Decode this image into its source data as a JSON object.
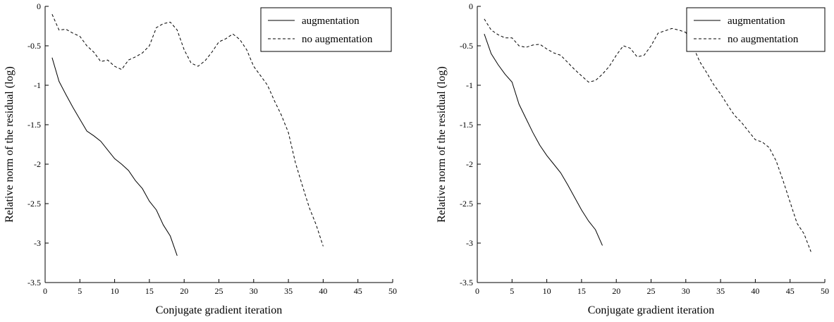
{
  "chart_data": [
    {
      "type": "line",
      "title": "",
      "xlabel": "Conjugate gradient iteration",
      "ylabel": "Relative norm of the residual (log)",
      "xlim": [
        0,
        50
      ],
      "ylim": [
        -3.5,
        0
      ],
      "xticks": [
        "0",
        "5",
        "10",
        "15",
        "20",
        "25",
        "30",
        "35",
        "40",
        "45",
        "50"
      ],
      "yticks": [
        "0",
        "-0.5",
        "-1",
        "-1.5",
        "-2",
        "-2.5",
        "-3",
        "-3.5"
      ],
      "grid": false,
      "legend_position": "top-right",
      "series": [
        {
          "name": "augmentation",
          "style": "solid",
          "x": [
            1,
            2,
            3,
            4,
            5,
            6,
            7,
            8,
            9,
            10,
            11,
            12,
            13,
            14,
            15,
            16,
            17,
            18,
            19
          ],
          "y": [
            -0.65,
            -0.95,
            -1.12,
            -1.28,
            -1.43,
            -1.58,
            -1.64,
            -1.71,
            -1.82,
            -1.93,
            -2.0,
            -2.08,
            -2.21,
            -2.31,
            -2.47,
            -2.58,
            -2.77,
            -2.91,
            -3.16
          ]
        },
        {
          "name": "no augmentation",
          "style": "dashed",
          "x": [
            1,
            2,
            3,
            4,
            5,
            6,
            7,
            8,
            9,
            10,
            11,
            12,
            13,
            14,
            15,
            16,
            17,
            18,
            19,
            20,
            21,
            22,
            23,
            24,
            25,
            26,
            27,
            28,
            29,
            30,
            31,
            32,
            33,
            34,
            35,
            36,
            37,
            38,
            39,
            40
          ],
          "y": [
            -0.1,
            -0.3,
            -0.29,
            -0.34,
            -0.38,
            -0.5,
            -0.58,
            -0.7,
            -0.68,
            -0.76,
            -0.8,
            -0.68,
            -0.64,
            -0.59,
            -0.5,
            -0.27,
            -0.22,
            -0.2,
            -0.3,
            -0.55,
            -0.72,
            -0.76,
            -0.69,
            -0.58,
            -0.45,
            -0.41,
            -0.35,
            -0.42,
            -0.55,
            -0.76,
            -0.88,
            -1.0,
            -1.2,
            -1.38,
            -1.6,
            -1.98,
            -2.27,
            -2.55,
            -2.77,
            -3.04
          ]
        }
      ]
    },
    {
      "type": "line",
      "title": "",
      "xlabel": "Conjugate gradient iteration",
      "ylabel": "Relative norm of the residual (log)",
      "xlim": [
        0,
        50
      ],
      "ylim": [
        -3.5,
        0
      ],
      "xticks": [
        "0",
        "5",
        "10",
        "15",
        "20",
        "25",
        "30",
        "35",
        "40",
        "45",
        "50"
      ],
      "yticks": [
        "0",
        "-0.5",
        "-1",
        "-1.5",
        "-2",
        "-2.5",
        "-3",
        "-3.5"
      ],
      "grid": false,
      "legend_position": "top-right",
      "series": [
        {
          "name": "augmentation",
          "style": "solid",
          "x": [
            1,
            2,
            3,
            4,
            5,
            6,
            7,
            8,
            9,
            10,
            11,
            12,
            13,
            14,
            15,
            16,
            17,
            18
          ],
          "y": [
            -0.35,
            -0.6,
            -0.74,
            -0.86,
            -0.96,
            -1.24,
            -1.42,
            -1.6,
            -1.76,
            -1.89,
            -2.0,
            -2.11,
            -2.26,
            -2.42,
            -2.58,
            -2.72,
            -2.83,
            -3.03
          ]
        },
        {
          "name": "no augmentation",
          "style": "dashed",
          "x": [
            1,
            2,
            3,
            4,
            5,
            6,
            7,
            8,
            9,
            10,
            11,
            12,
            13,
            14,
            15,
            16,
            17,
            18,
            19,
            20,
            21,
            22,
            23,
            24,
            25,
            26,
            27,
            28,
            29,
            30,
            31,
            32,
            33,
            34,
            35,
            36,
            37,
            38,
            39,
            40,
            41,
            42,
            43,
            44,
            45,
            46,
            47,
            48
          ],
          "y": [
            -0.16,
            -0.3,
            -0.36,
            -0.4,
            -0.4,
            -0.5,
            -0.52,
            -0.49,
            -0.48,
            -0.54,
            -0.59,
            -0.62,
            -0.71,
            -0.8,
            -0.88,
            -0.96,
            -0.94,
            -0.86,
            -0.76,
            -0.62,
            -0.5,
            -0.53,
            -0.64,
            -0.62,
            -0.5,
            -0.34,
            -0.31,
            -0.28,
            -0.3,
            -0.33,
            -0.5,
            -0.7,
            -0.84,
            -0.99,
            -1.11,
            -1.25,
            -1.38,
            -1.47,
            -1.58,
            -1.69,
            -1.72,
            -1.79,
            -1.96,
            -2.21,
            -2.48,
            -2.75,
            -2.88,
            -3.11
          ]
        }
      ]
    }
  ]
}
